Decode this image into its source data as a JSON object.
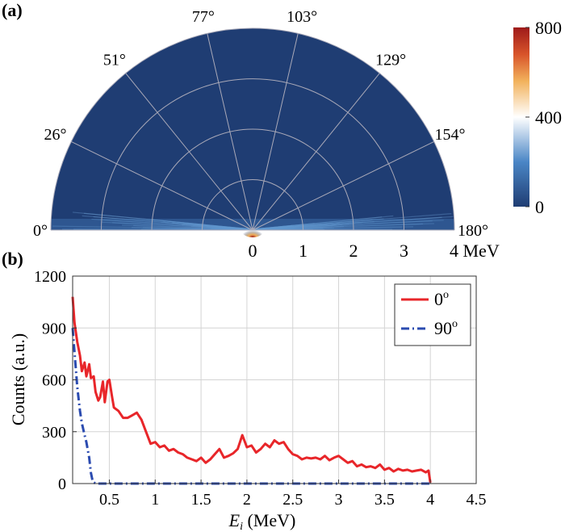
{
  "panels": {
    "a_label": "(a)",
    "b_label": "(b)"
  },
  "chart_data": [
    {
      "type": "heatmap",
      "subtype": "polar-half",
      "angle_labels": [
        "0°",
        "26°",
        "51°",
        "77°",
        "103°",
        "129°",
        "154°",
        "180°"
      ],
      "angle_values": [
        0,
        26,
        51,
        77,
        103,
        129,
        154,
        180
      ],
      "radial_ticks": [
        "0",
        "1",
        "2",
        "3",
        "4 MeV"
      ],
      "radial_values": [
        0,
        1,
        2,
        3,
        4
      ],
      "colorbar": {
        "ticks": [
          "0",
          "400",
          "800"
        ],
        "values": [
          0,
          400,
          800
        ],
        "range": [
          0,
          800
        ]
      },
      "colors": {
        "background": "#1f3d73",
        "grid": "#a9a9b8",
        "low": "#1f3d73",
        "mid": "#ffffff",
        "high": "#9e1a1a"
      },
      "note_in_picture": "counts concentrated near 0° and 180° at low energy, near-zero elsewhere"
    },
    {
      "type": "line",
      "xlabel_main": "E",
      "xlabel_sub": "i",
      "xlabel_unit": " (MeV)",
      "ylabel": "Counts (a.u.)",
      "xlim": [
        0.1,
        4.5
      ],
      "ylim": [
        0,
        1200
      ],
      "x_ticks": [
        0.5,
        1,
        1.5,
        2,
        2.5,
        3,
        3.5,
        4,
        4.5
      ],
      "x_tick_labels": [
        "0.5",
        "1",
        "1.5",
        "2",
        "2.5",
        "3",
        "3.5",
        "4",
        "4.5"
      ],
      "y_ticks": [
        0,
        300,
        600,
        900,
        1200
      ],
      "y_tick_labels": [
        "0",
        "300",
        "600",
        "900",
        "1200"
      ],
      "grid": true,
      "legend_position": "top-right",
      "series": [
        {
          "name": "0",
          "name_sup": "o",
          "color": "#e8262a",
          "style": "solid",
          "x": [
            0.1,
            0.12,
            0.15,
            0.18,
            0.2,
            0.23,
            0.25,
            0.28,
            0.3,
            0.33,
            0.35,
            0.38,
            0.4,
            0.43,
            0.45,
            0.48,
            0.5,
            0.53,
            0.55,
            0.6,
            0.65,
            0.7,
            0.75,
            0.8,
            0.85,
            0.9,
            0.95,
            1.0,
            1.05,
            1.1,
            1.15,
            1.2,
            1.25,
            1.3,
            1.35,
            1.4,
            1.45,
            1.5,
            1.55,
            1.6,
            1.65,
            1.7,
            1.75,
            1.8,
            1.85,
            1.9,
            1.95,
            2.0,
            2.05,
            2.1,
            2.15,
            2.2,
            2.25,
            2.3,
            2.35,
            2.4,
            2.45,
            2.5,
            2.55,
            2.6,
            2.65,
            2.7,
            2.75,
            2.8,
            2.85,
            2.9,
            2.95,
            3.0,
            3.05,
            3.1,
            3.15,
            3.2,
            3.25,
            3.3,
            3.35,
            3.4,
            3.45,
            3.5,
            3.55,
            3.6,
            3.65,
            3.7,
            3.75,
            3.8,
            3.85,
            3.9,
            3.95,
            3.98,
            4.0
          ],
          "y": [
            1080,
            930,
            820,
            740,
            650,
            700,
            620,
            690,
            610,
            620,
            530,
            480,
            500,
            590,
            470,
            590,
            600,
            500,
            440,
            420,
            380,
            380,
            395,
            410,
            370,
            300,
            230,
            240,
            210,
            220,
            190,
            200,
            180,
            170,
            150,
            140,
            130,
            150,
            120,
            140,
            170,
            200,
            150,
            160,
            175,
            200,
            280,
            210,
            220,
            180,
            200,
            230,
            210,
            250,
            230,
            240,
            200,
            170,
            160,
            140,
            150,
            145,
            150,
            140,
            160,
            135,
            150,
            160,
            140,
            120,
            130,
            100,
            110,
            95,
            100,
            90,
            110,
            80,
            90,
            70,
            85,
            75,
            80,
            70,
            75,
            80,
            65,
            75,
            5
          ]
        },
        {
          "name": "90",
          "name_sup": "o",
          "color": "#2b4bb0",
          "style": "dashdot",
          "x": [
            0.1,
            0.12,
            0.15,
            0.18,
            0.2,
            0.23,
            0.25,
            0.28,
            0.3,
            0.32,
            0.35,
            0.4,
            1.0,
            2.0,
            3.0,
            4.0
          ],
          "y": [
            900,
            760,
            560,
            420,
            350,
            280,
            240,
            150,
            60,
            10,
            0,
            0,
            0,
            0,
            0,
            0
          ]
        }
      ]
    }
  ]
}
